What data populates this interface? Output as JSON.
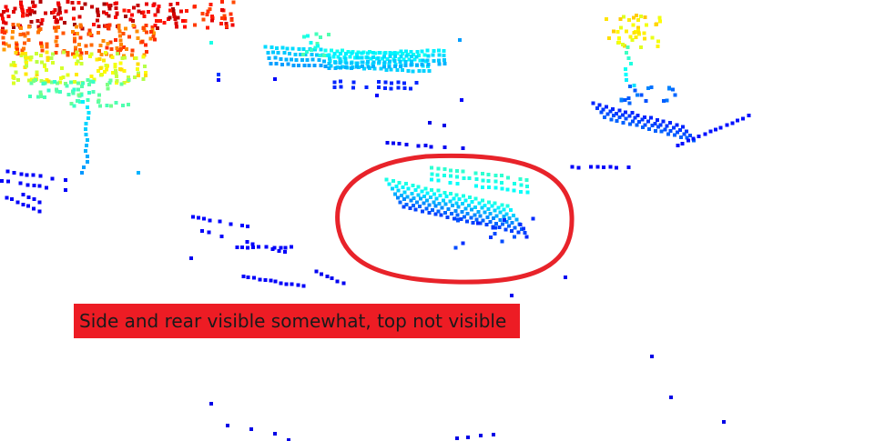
{
  "annotation": {
    "caption": "Side and rear visible somewhat, top not visible",
    "caption_background": "#ed1c24",
    "highlight_color": "#e8232a"
  },
  "point_cloud": {
    "colormap": "jet",
    "background": "#ffffff"
  }
}
